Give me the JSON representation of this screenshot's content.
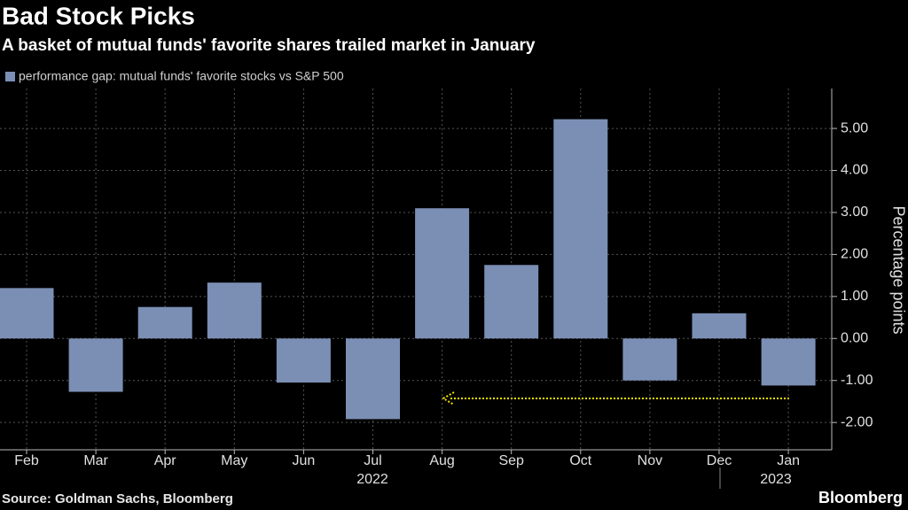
{
  "chart_data": {
    "type": "bar",
    "title": "Bad Stock Picks",
    "subtitle": "A basket of mutual funds' favorite shares trailed market in January",
    "series": [
      {
        "name": "performance gap: mutual funds' favorite stocks vs S&P 500",
        "color": "#7b8fb5",
        "values": [
          1.2,
          -1.27,
          0.75,
          1.33,
          -1.05,
          -1.92,
          3.1,
          1.75,
          5.22,
          -1.0,
          0.6,
          -1.12
        ]
      }
    ],
    "categories": [
      "Feb",
      "Mar",
      "Apr",
      "May",
      "Jun",
      "Jul",
      "Aug",
      "Sep",
      "Oct",
      "Nov",
      "Dec",
      "Jan"
    ],
    "year_labels": [
      "2022",
      "2023"
    ],
    "y_axis_label": "Percentage points",
    "ylim": [
      -2.65,
      5.95
    ],
    "yticks": [
      {
        "value": 5,
        "label": "5.00"
      },
      {
        "value": 4,
        "label": "4.00"
      },
      {
        "value": 3,
        "label": "3.00"
      },
      {
        "value": 2,
        "label": "2.00"
      },
      {
        "value": 1,
        "label": "1.00"
      },
      {
        "value": 0,
        "label": "0.00"
      },
      {
        "value": -1,
        "label": "-1.00"
      },
      {
        "value": -2,
        "label": "-2.00"
      }
    ],
    "grid": true,
    "source": "Source: Goldman Sachs, Bloomberg",
    "brand": "Bloomberg"
  }
}
